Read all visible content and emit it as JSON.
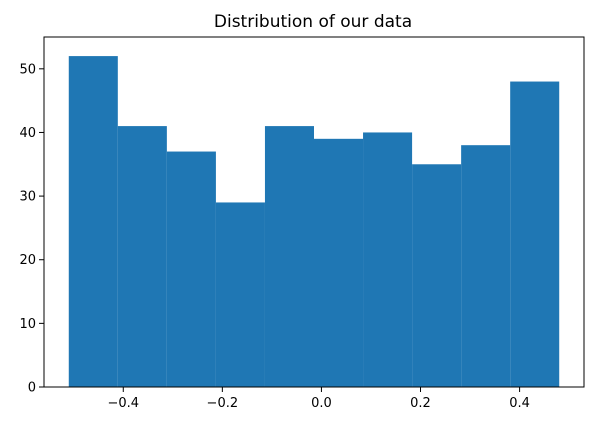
{
  "chart_data": {
    "type": "bar",
    "title": "Distribution of our data",
    "xlabel": "",
    "ylabel": "",
    "bin_edges": [
      -0.51,
      -0.411,
      -0.312,
      -0.213,
      -0.114,
      -0.015,
      0.084,
      0.183,
      0.282,
      0.381,
      0.48
    ],
    "counts": [
      52,
      41,
      37,
      29,
      41,
      39,
      40,
      35,
      38,
      48
    ],
    "bar_color": "#1f77b4",
    "xlim": [
      -0.56,
      0.53
    ],
    "ylim": [
      0,
      55
    ],
    "xticks": [
      -0.4,
      -0.2,
      0.0,
      0.2,
      0.4
    ],
    "xtick_labels": [
      "−0.4",
      "−0.2",
      "0.0",
      "0.2",
      "0.4"
    ],
    "yticks": [
      0,
      10,
      20,
      30,
      40,
      50
    ],
    "ytick_labels": [
      "0",
      "10",
      "20",
      "30",
      "40",
      "50"
    ],
    "grid": false
  }
}
